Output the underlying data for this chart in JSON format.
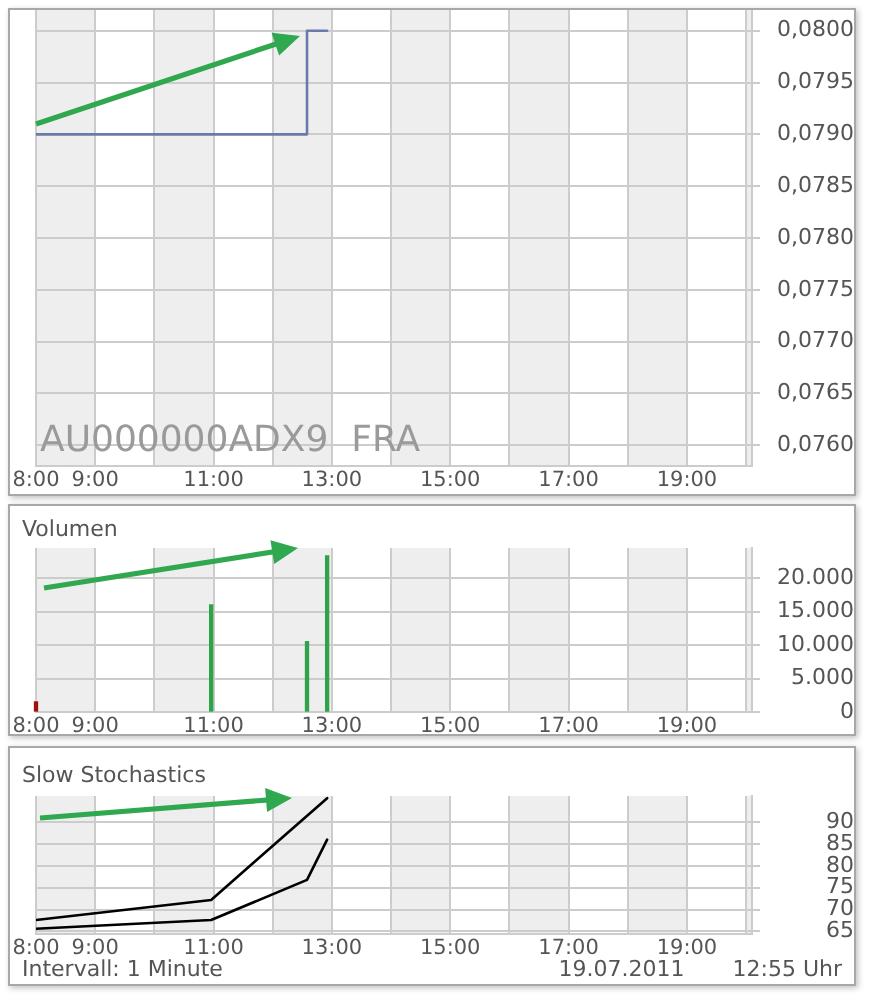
{
  "chart_data": [
    {
      "type": "step",
      "x": [
        8,
        12.58,
        12.92
      ],
      "values": [
        0.079,
        0.08,
        0.08
      ],
      "color": "#6a7bab",
      "xlim": [
        8,
        20.1
      ],
      "xticks": [
        {
          "value": 8,
          "label": "8:00"
        },
        {
          "value": 9,
          "label": "9:00"
        },
        {
          "value": 10,
          "label": null
        },
        {
          "value": 11,
          "label": "11:00"
        },
        {
          "value": 12,
          "label": null
        },
        {
          "value": 13,
          "label": "13:00"
        },
        {
          "value": 14,
          "label": null
        },
        {
          "value": 15,
          "label": "15:00"
        },
        {
          "value": 16,
          "label": null
        },
        {
          "value": 17,
          "label": "17:00"
        },
        {
          "value": 18,
          "label": null
        },
        {
          "value": 19,
          "label": "19:00"
        },
        {
          "value": 20,
          "label": null
        }
      ],
      "ylim": [
        0.0758,
        0.0802
      ],
      "yticks": [
        {
          "value": 0.076,
          "label": "0,0760"
        },
        {
          "value": 0.0765,
          "label": "0,0765"
        },
        {
          "value": 0.077,
          "label": "0,0770"
        },
        {
          "value": 0.0775,
          "label": "0,0775"
        },
        {
          "value": 0.078,
          "label": "0,0780"
        },
        {
          "value": 0.0785,
          "label": "0,0785"
        },
        {
          "value": 0.079,
          "label": "0,0790"
        },
        {
          "value": 0.0795,
          "label": "0,0795"
        },
        {
          "value": 0.08,
          "label": "0,0800"
        }
      ],
      "grid": true,
      "marker": "none",
      "bands": [
        {
          "axis": "x",
          "from": 8,
          "to": 9,
          "color": "#eeeeee"
        },
        {
          "axis": "x",
          "from": 10,
          "to": 11,
          "color": "#eeeeee"
        },
        {
          "axis": "x",
          "from": 12,
          "to": 13,
          "color": "#eeeeee"
        },
        {
          "axis": "x",
          "from": 14,
          "to": 15,
          "color": "#eeeeee"
        },
        {
          "axis": "x",
          "from": 16,
          "to": 17,
          "color": "#eeeeee"
        },
        {
          "axis": "x",
          "from": 18,
          "to": 19,
          "color": "#eeeeee"
        },
        {
          "axis": "x",
          "from": 20,
          "to": 20.1,
          "color": "#eeeeee"
        }
      ],
      "annotations": [
        "AU000000ADX9  FRA"
      ]
    },
    {
      "type": "bar",
      "title": "Volumen",
      "x": [
        8,
        10.96,
        12.58,
        12.92
      ],
      "values": [
        1500,
        16000,
        10500,
        23300
      ],
      "colors": [
        "#a01010",
        "#2ea34a",
        "#2ea34a",
        "#2ea34a"
      ],
      "xlim": [
        8,
        20.1
      ],
      "xticks": [
        {
          "value": 8,
          "label": "8:00"
        },
        {
          "value": 9,
          "label": "9:00"
        },
        {
          "value": 10,
          "label": null
        },
        {
          "value": 11,
          "label": "11:00"
        },
        {
          "value": 12,
          "label": null
        },
        {
          "value": 13,
          "label": "13:00"
        },
        {
          "value": 14,
          "label": null
        },
        {
          "value": 15,
          "label": "15:00"
        },
        {
          "value": 16,
          "label": null
        },
        {
          "value": 17,
          "label": "17:00"
        },
        {
          "value": 18,
          "label": null
        },
        {
          "value": 19,
          "label": "19:00"
        },
        {
          "value": 20,
          "label": null
        }
      ],
      "ylim": [
        0,
        24500
      ],
      "yticks": [
        0,
        {
          "value": 5000,
          "label": "5.000"
        },
        {
          "value": 10000,
          "label": "10.000"
        },
        {
          "value": 15000,
          "label": "15.000"
        },
        {
          "value": 20000,
          "label": "20.000"
        }
      ],
      "grid": true,
      "bands": [
        {
          "axis": "x",
          "from": 8,
          "to": 9,
          "color": "#eeeeee"
        },
        {
          "axis": "x",
          "from": 10,
          "to": 11,
          "color": "#eeeeee"
        },
        {
          "axis": "x",
          "from": 12,
          "to": 13,
          "color": "#eeeeee"
        },
        {
          "axis": "x",
          "from": 14,
          "to": 15,
          "color": "#eeeeee"
        },
        {
          "axis": "x",
          "from": 16,
          "to": 17,
          "color": "#eeeeee"
        },
        {
          "axis": "x",
          "from": 18,
          "to": 19,
          "color": "#eeeeee"
        },
        {
          "axis": "x",
          "from": 20,
          "to": 20.1,
          "color": "#eeeeee"
        }
      ]
    },
    {
      "type": "line",
      "title": "Slow Stochastics",
      "series": [
        {
          "color": "#000000",
          "x": [
            8,
            10.96,
            12.92
          ],
          "values": [
            67.6,
            72.2,
            95.5
          ]
        },
        {
          "color": "#000000",
          "x": [
            8,
            10.96,
            12.58,
            12.92
          ],
          "values": [
            65.6,
            67.6,
            76.8,
            86.0
          ]
        }
      ],
      "xlim": [
        8,
        20.1
      ],
      "xticks": [
        {
          "value": 8,
          "label": "8:00"
        },
        {
          "value": 9,
          "label": "9:00"
        },
        {
          "value": 10,
          "label": null
        },
        {
          "value": 11,
          "label": "11:00"
        },
        {
          "value": 12,
          "label": null
        },
        {
          "value": 13,
          "label": "13:00"
        },
        {
          "value": 14,
          "label": null
        },
        {
          "value": 15,
          "label": "15:00"
        },
        {
          "value": 16,
          "label": null
        },
        {
          "value": 17,
          "label": "17:00"
        },
        {
          "value": 18,
          "label": null
        },
        {
          "value": 19,
          "label": "19:00"
        },
        {
          "value": 20,
          "label": null
        }
      ],
      "ylim": [
        64.4,
        96
      ],
      "yticks": [
        65,
        70,
        75,
        80,
        85,
        90
      ],
      "grid": true,
      "marker": "none",
      "bands": [
        {
          "axis": "x",
          "from": 8,
          "to": 9,
          "color": "#eeeeee"
        },
        {
          "axis": "x",
          "from": 10,
          "to": 11,
          "color": "#eeeeee"
        },
        {
          "axis": "x",
          "from": 12,
          "to": 13,
          "color": "#eeeeee"
        },
        {
          "axis": "x",
          "from": 14,
          "to": 15,
          "color": "#eeeeee"
        },
        {
          "axis": "x",
          "from": 16,
          "to": 17,
          "color": "#eeeeee"
        },
        {
          "axis": "x",
          "from": 18,
          "to": 19,
          "color": "#eeeeee"
        },
        {
          "axis": "x",
          "from": 20,
          "to": 20.1,
          "color": "#eeeeee"
        }
      ],
      "annotations": [
        "Intervall: 1 Minute",
        "19.07.2011",
        "12:55 Uhr"
      ]
    }
  ]
}
